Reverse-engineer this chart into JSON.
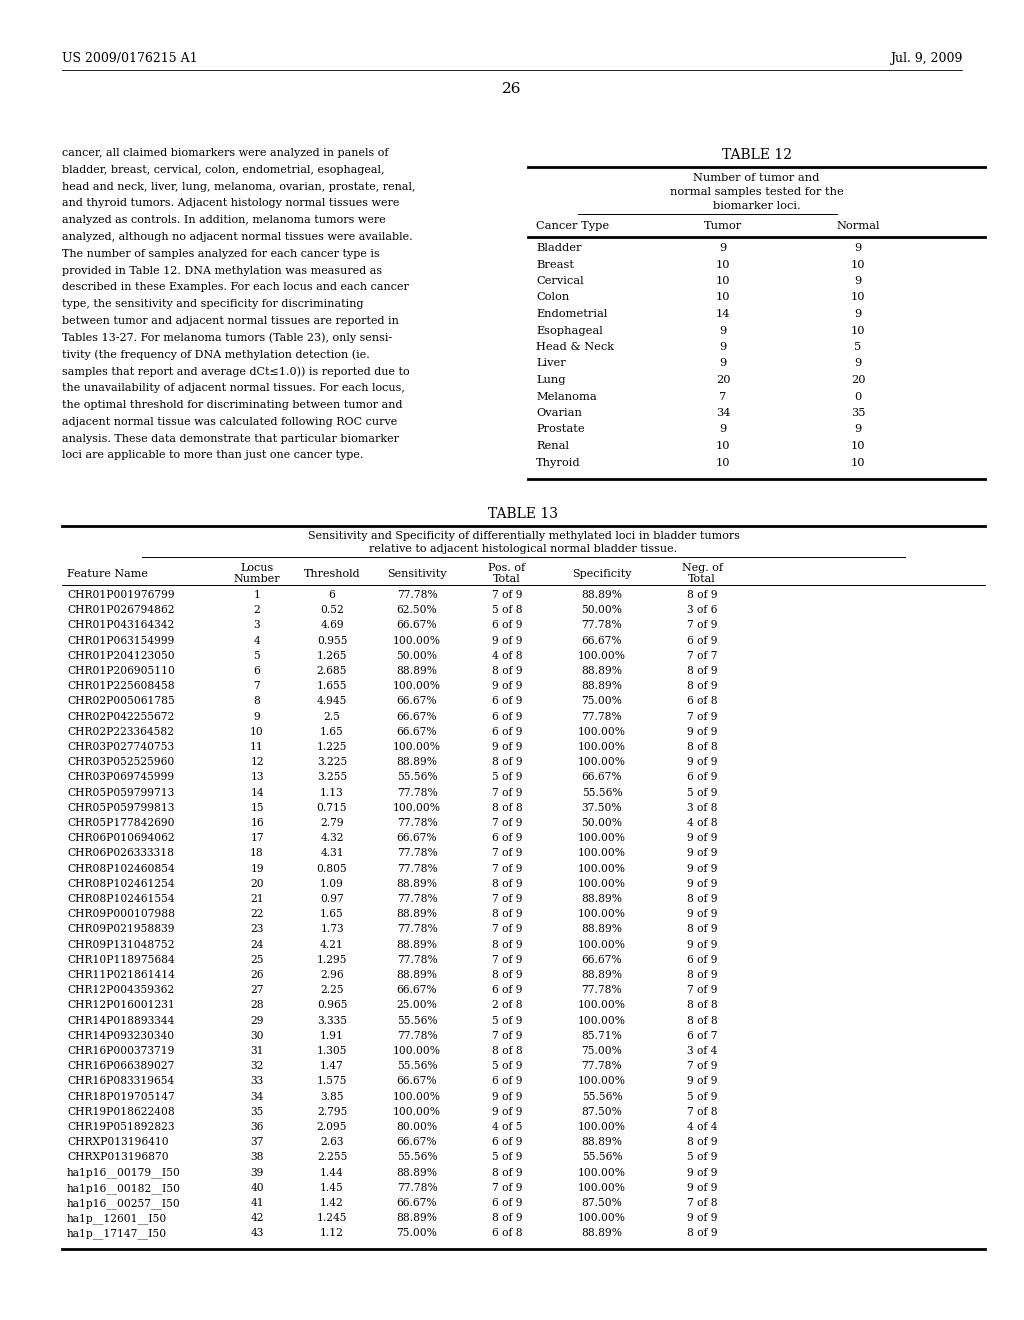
{
  "background_color": "#ffffff",
  "header_left": "US 2009/0176215 A1",
  "header_right": "Jul. 9, 2009",
  "page_number": "26",
  "body_text": [
    "cancer, all claimed biomarkers were analyzed in panels of",
    "bladder, breast, cervical, colon, endometrial, esophageal,",
    "head and neck, liver, lung, melanoma, ovarian, prostate, renal,",
    "and thyroid tumors. Adjacent histology normal tissues were",
    "analyzed as controls. In addition, melanoma tumors were",
    "analyzed, although no adjacent normal tissues were available.",
    "The number of samples analyzed for each cancer type is",
    "provided in Table 12. DNA methylation was measured as",
    "described in these Examples. For each locus and each cancer",
    "type, the sensitivity and specificity for discriminating",
    "between tumor and adjacent normal tissues are reported in",
    "Tables 13-27. For melanoma tumors (Table 23), only sensi-",
    "tivity (the frequency of DNA methylation detection (ie.",
    "samples that report and average dCt≤1.0)) is reported due to",
    "the unavailability of adjacent normal tissues. For each locus,",
    "the optimal threshold for discriminating between tumor and",
    "adjacent normal tissue was calculated following ROC curve",
    "analysis. These data demonstrate that particular biomarker",
    "loci are applicable to more than just one cancer type."
  ],
  "table12_title": "TABLE 12",
  "table12_subtitle": [
    "Number of tumor and",
    "normal samples tested for the",
    "biomarker loci."
  ],
  "table12_headers": [
    "Cancer Type",
    "Tumor",
    "Normal"
  ],
  "table12_data": [
    [
      "Bladder",
      "9",
      "9"
    ],
    [
      "Breast",
      "10",
      "10"
    ],
    [
      "Cervical",
      "10",
      "9"
    ],
    [
      "Colon",
      "10",
      "10"
    ],
    [
      "Endometrial",
      "14",
      "9"
    ],
    [
      "Esophageal",
      "9",
      "10"
    ],
    [
      "Head & Neck",
      "9",
      "5"
    ],
    [
      "Liver",
      "9",
      "9"
    ],
    [
      "Lung",
      "20",
      "20"
    ],
    [
      "Melanoma",
      "7",
      "0"
    ],
    [
      "Ovarian",
      "34",
      "35"
    ],
    [
      "Prostate",
      "9",
      "9"
    ],
    [
      "Renal",
      "10",
      "10"
    ],
    [
      "Thyroid",
      "10",
      "10"
    ]
  ],
  "table13_title": "TABLE 13",
  "table13_subtitle": [
    "Sensitivity and Specificity of differentially methylated loci in bladder tumors",
    "relative to adjacent histological normal bladder tissue."
  ],
  "table13_col_headers": [
    "Feature Name",
    "Locus\nNumber",
    "Threshold",
    "Sensitivity",
    "Pos. of\nTotal",
    "Specificity",
    "Neg. of\nTotal"
  ],
  "table13_data": [
    [
      "CHR01P001976799",
      "1",
      "6",
      "77.78%",
      "7 of 9",
      "88.89%",
      "8 of 9"
    ],
    [
      "CHR01P026794862",
      "2",
      "0.52",
      "62.50%",
      "5 of 8",
      "50.00%",
      "3 of 6"
    ],
    [
      "CHR01P043164342",
      "3",
      "4.69",
      "66.67%",
      "6 of 9",
      "77.78%",
      "7 of 9"
    ],
    [
      "CHR01P063154999",
      "4",
      "0.955",
      "100.00%",
      "9 of 9",
      "66.67%",
      "6 of 9"
    ],
    [
      "CHR01P204123050",
      "5",
      "1.265",
      "50.00%",
      "4 of 8",
      "100.00%",
      "7 of 7"
    ],
    [
      "CHR01P206905110",
      "6",
      "2.685",
      "88.89%",
      "8 of 9",
      "88.89%",
      "8 of 9"
    ],
    [
      "CHR01P225608458",
      "7",
      "1.655",
      "100.00%",
      "9 of 9",
      "88.89%",
      "8 of 9"
    ],
    [
      "CHR02P005061785",
      "8",
      "4.945",
      "66.67%",
      "6 of 9",
      "75.00%",
      "6 of 8"
    ],
    [
      "CHR02P042255672",
      "9",
      "2.5",
      "66.67%",
      "6 of 9",
      "77.78%",
      "7 of 9"
    ],
    [
      "CHR02P223364582",
      "10",
      "1.65",
      "66.67%",
      "6 of 9",
      "100.00%",
      "9 of 9"
    ],
    [
      "CHR03P027740753",
      "11",
      "1.225",
      "100.00%",
      "9 of 9",
      "100.00%",
      "8 of 8"
    ],
    [
      "CHR03P052525960",
      "12",
      "3.225",
      "88.89%",
      "8 of 9",
      "100.00%",
      "9 of 9"
    ],
    [
      "CHR03P069745999",
      "13",
      "3.255",
      "55.56%",
      "5 of 9",
      "66.67%",
      "6 of 9"
    ],
    [
      "CHR05P059799713",
      "14",
      "1.13",
      "77.78%",
      "7 of 9",
      "55.56%",
      "5 of 9"
    ],
    [
      "CHR05P059799813",
      "15",
      "0.715",
      "100.00%",
      "8 of 8",
      "37.50%",
      "3 of 8"
    ],
    [
      "CHR05P177842690",
      "16",
      "2.79",
      "77.78%",
      "7 of 9",
      "50.00%",
      "4 of 8"
    ],
    [
      "CHR06P010694062",
      "17",
      "4.32",
      "66.67%",
      "6 of 9",
      "100.00%",
      "9 of 9"
    ],
    [
      "CHR06P026333318",
      "18",
      "4.31",
      "77.78%",
      "7 of 9",
      "100.00%",
      "9 of 9"
    ],
    [
      "CHR08P102460854",
      "19",
      "0.805",
      "77.78%",
      "7 of 9",
      "100.00%",
      "9 of 9"
    ],
    [
      "CHR08P102461254",
      "20",
      "1.09",
      "88.89%",
      "8 of 9",
      "100.00%",
      "9 of 9"
    ],
    [
      "CHR08P102461554",
      "21",
      "0.97",
      "77.78%",
      "7 of 9",
      "88.89%",
      "8 of 9"
    ],
    [
      "CHR09P000107988",
      "22",
      "1.65",
      "88.89%",
      "8 of 9",
      "100.00%",
      "9 of 9"
    ],
    [
      "CHR09P021958839",
      "23",
      "1.73",
      "77.78%",
      "7 of 9",
      "88.89%",
      "8 of 9"
    ],
    [
      "CHR09P131048752",
      "24",
      "4.21",
      "88.89%",
      "8 of 9",
      "100.00%",
      "9 of 9"
    ],
    [
      "CHR10P118975684",
      "25",
      "1.295",
      "77.78%",
      "7 of 9",
      "66.67%",
      "6 of 9"
    ],
    [
      "CHR11P021861414",
      "26",
      "2.96",
      "88.89%",
      "8 of 9",
      "88.89%",
      "8 of 9"
    ],
    [
      "CHR12P004359362",
      "27",
      "2.25",
      "66.67%",
      "6 of 9",
      "77.78%",
      "7 of 9"
    ],
    [
      "CHR12P016001231",
      "28",
      "0.965",
      "25.00%",
      "2 of 8",
      "100.00%",
      "8 of 8"
    ],
    [
      "CHR14P018893344",
      "29",
      "3.335",
      "55.56%",
      "5 of 9",
      "100.00%",
      "8 of 8"
    ],
    [
      "CHR14P093230340",
      "30",
      "1.91",
      "77.78%",
      "7 of 9",
      "85.71%",
      "6 of 7"
    ],
    [
      "CHR16P000373719",
      "31",
      "1.305",
      "100.00%",
      "8 of 8",
      "75.00%",
      "3 of 4"
    ],
    [
      "CHR16P066389027",
      "32",
      "1.47",
      "55.56%",
      "5 of 9",
      "77.78%",
      "7 of 9"
    ],
    [
      "CHR16P083319654",
      "33",
      "1.575",
      "66.67%",
      "6 of 9",
      "100.00%",
      "9 of 9"
    ],
    [
      "CHR18P019705147",
      "34",
      "3.85",
      "100.00%",
      "9 of 9",
      "55.56%",
      "5 of 9"
    ],
    [
      "CHR19P018622408",
      "35",
      "2.795",
      "100.00%",
      "9 of 9",
      "87.50%",
      "7 of 8"
    ],
    [
      "CHR19P051892823",
      "36",
      "2.095",
      "80.00%",
      "4 of 5",
      "100.00%",
      "4 of 4"
    ],
    [
      "CHRXP013196410",
      "37",
      "2.63",
      "66.67%",
      "6 of 9",
      "88.89%",
      "8 of 9"
    ],
    [
      "CHRXP013196870",
      "38",
      "2.255",
      "55.56%",
      "5 of 9",
      "55.56%",
      "5 of 9"
    ],
    [
      "ha1p16__00179__I50",
      "39",
      "1.44",
      "88.89%",
      "8 of 9",
      "100.00%",
      "9 of 9"
    ],
    [
      "ha1p16__00182__I50",
      "40",
      "1.45",
      "77.78%",
      "7 of 9",
      "100.00%",
      "9 of 9"
    ],
    [
      "ha1p16__00257__I50",
      "41",
      "1.42",
      "66.67%",
      "6 of 9",
      "87.50%",
      "7 of 8"
    ],
    [
      "ha1p__12601__I50",
      "42",
      "1.245",
      "88.89%",
      "8 of 9",
      "100.00%",
      "9 of 9"
    ],
    [
      "ha1p__17147__I50",
      "43",
      "1.12",
      "75.00%",
      "6 of 8",
      "88.89%",
      "8 of 9"
    ]
  ]
}
